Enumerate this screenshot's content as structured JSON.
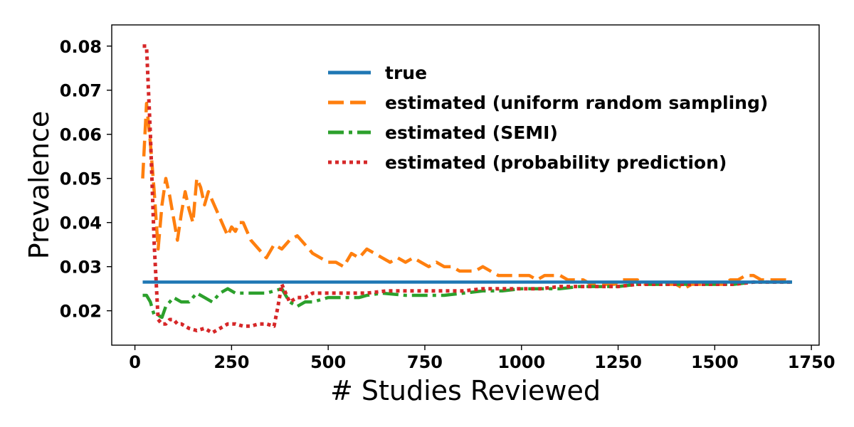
{
  "chart_data": {
    "type": "line",
    "title": "",
    "xlabel": "# Studies Reviewed",
    "ylabel": "Prevalence",
    "xlim": [
      -60,
      1770
    ],
    "ylim": [
      0.0122,
      0.0848
    ],
    "xticks": [
      0,
      250,
      500,
      750,
      1000,
      1250,
      1500,
      1750
    ],
    "yticks": [
      0.02,
      0.03,
      0.04,
      0.05,
      0.06,
      0.07,
      0.08
    ],
    "x_tick_labels": [
      "0",
      "250",
      "500",
      "750",
      "1000",
      "1250",
      "1500",
      "1750"
    ],
    "y_tick_labels": [
      "0.02",
      "0.03",
      "0.04",
      "0.05",
      "0.06",
      "0.07",
      "0.08"
    ],
    "grid": false,
    "legend_position": "top-right",
    "series": [
      {
        "name": "true",
        "color": "#1f77b4",
        "style": "solid",
        "x": [
          20,
          1700
        ],
        "y": [
          0.0265,
          0.0265
        ]
      },
      {
        "name": "estimated (uniform random sampling)",
        "color": "#ff7f0e",
        "style": "dashed",
        "x": [
          20,
          30,
          40,
          50,
          60,
          70,
          80,
          90,
          100,
          110,
          120,
          130,
          140,
          150,
          160,
          170,
          180,
          190,
          200,
          210,
          220,
          230,
          240,
          250,
          260,
          270,
          280,
          290,
          300,
          320,
          340,
          360,
          380,
          400,
          420,
          440,
          460,
          480,
          500,
          520,
          540,
          560,
          580,
          600,
          620,
          640,
          660,
          680,
          700,
          720,
          740,
          760,
          780,
          800,
          820,
          840,
          860,
          880,
          900,
          920,
          940,
          960,
          980,
          1000,
          1020,
          1040,
          1060,
          1080,
          1100,
          1120,
          1140,
          1160,
          1180,
          1200,
          1220,
          1240,
          1260,
          1280,
          1300,
          1320,
          1340,
          1360,
          1380,
          1400,
          1420,
          1440,
          1460,
          1480,
          1500,
          1520,
          1540,
          1560,
          1580,
          1600,
          1620,
          1640,
          1660,
          1680,
          1700
        ],
        "y": [
          0.05,
          0.067,
          0.058,
          0.047,
          0.034,
          0.044,
          0.05,
          0.046,
          0.041,
          0.036,
          0.042,
          0.047,
          0.043,
          0.04,
          0.05,
          0.048,
          0.044,
          0.047,
          0.045,
          0.043,
          0.041,
          0.039,
          0.037,
          0.039,
          0.038,
          0.04,
          0.04,
          0.038,
          0.036,
          0.034,
          0.032,
          0.035,
          0.034,
          0.036,
          0.037,
          0.035,
          0.033,
          0.032,
          0.031,
          0.031,
          0.03,
          0.033,
          0.032,
          0.034,
          0.033,
          0.032,
          0.031,
          0.032,
          0.031,
          0.032,
          0.031,
          0.03,
          0.031,
          0.03,
          0.03,
          0.029,
          0.029,
          0.029,
          0.03,
          0.029,
          0.028,
          0.028,
          0.028,
          0.028,
          0.028,
          0.027,
          0.028,
          0.028,
          0.028,
          0.027,
          0.027,
          0.027,
          0.026,
          0.026,
          0.026,
          0.026,
          0.027,
          0.027,
          0.027,
          0.026,
          0.026,
          0.026,
          0.026,
          0.026,
          0.025,
          0.026,
          0.026,
          0.026,
          0.026,
          0.026,
          0.027,
          0.027,
          0.028,
          0.028,
          0.027,
          0.027,
          0.027,
          0.027,
          0.027
        ]
      },
      {
        "name": "estimated (SEMI)",
        "color": "#2ca02c",
        "style": "dashdot",
        "x": [
          20,
          30,
          40,
          50,
          60,
          70,
          80,
          90,
          100,
          120,
          140,
          160,
          180,
          200,
          220,
          240,
          260,
          280,
          300,
          320,
          340,
          360,
          380,
          400,
          420,
          440,
          460,
          500,
          540,
          580,
          600,
          640,
          700,
          760,
          800,
          850,
          900,
          950,
          1000,
          1050,
          1100,
          1150,
          1200,
          1250,
          1300,
          1350,
          1400,
          1450,
          1500,
          1550,
          1600,
          1650,
          1700
        ],
        "y": [
          0.0235,
          0.0235,
          0.022,
          0.019,
          0.019,
          0.0185,
          0.021,
          0.022,
          0.023,
          0.022,
          0.022,
          0.024,
          0.023,
          0.022,
          0.024,
          0.025,
          0.024,
          0.024,
          0.024,
          0.024,
          0.024,
          0.0245,
          0.025,
          0.022,
          0.021,
          0.022,
          0.022,
          0.023,
          0.023,
          0.023,
          0.0235,
          0.024,
          0.0235,
          0.0235,
          0.0235,
          0.024,
          0.0245,
          0.0245,
          0.025,
          0.025,
          0.025,
          0.0255,
          0.0255,
          0.0255,
          0.026,
          0.026,
          0.026,
          0.026,
          0.026,
          0.026,
          0.0265,
          0.0265,
          0.0265
        ]
      },
      {
        "name": "estimated (probability prediction)",
        "color": "#d62728",
        "style": "dotted",
        "x": [
          20,
          30,
          40,
          50,
          60,
          70,
          80,
          90,
          100,
          110,
          120,
          140,
          160,
          180,
          200,
          220,
          240,
          260,
          280,
          300,
          320,
          340,
          360,
          370,
          380,
          400,
          420,
          440,
          460,
          500,
          540,
          600,
          650,
          700,
          750,
          800,
          850,
          900,
          950,
          1000,
          1050,
          1100,
          1150,
          1200,
          1250,
          1300,
          1350,
          1400,
          1450,
          1500,
          1550,
          1600,
          1650,
          1700
        ],
        "y": [
          0.08,
          0.08,
          0.06,
          0.035,
          0.018,
          0.017,
          0.017,
          0.018,
          0.018,
          0.017,
          0.017,
          0.016,
          0.0155,
          0.016,
          0.015,
          0.016,
          0.017,
          0.017,
          0.0165,
          0.0165,
          0.017,
          0.017,
          0.0165,
          0.021,
          0.026,
          0.022,
          0.023,
          0.023,
          0.024,
          0.024,
          0.024,
          0.024,
          0.0245,
          0.0245,
          0.0245,
          0.0245,
          0.0245,
          0.025,
          0.025,
          0.025,
          0.025,
          0.0255,
          0.0255,
          0.0255,
          0.0255,
          0.026,
          0.026,
          0.026,
          0.026,
          0.026,
          0.026,
          0.0265,
          0.0265,
          0.0265
        ]
      }
    ]
  }
}
